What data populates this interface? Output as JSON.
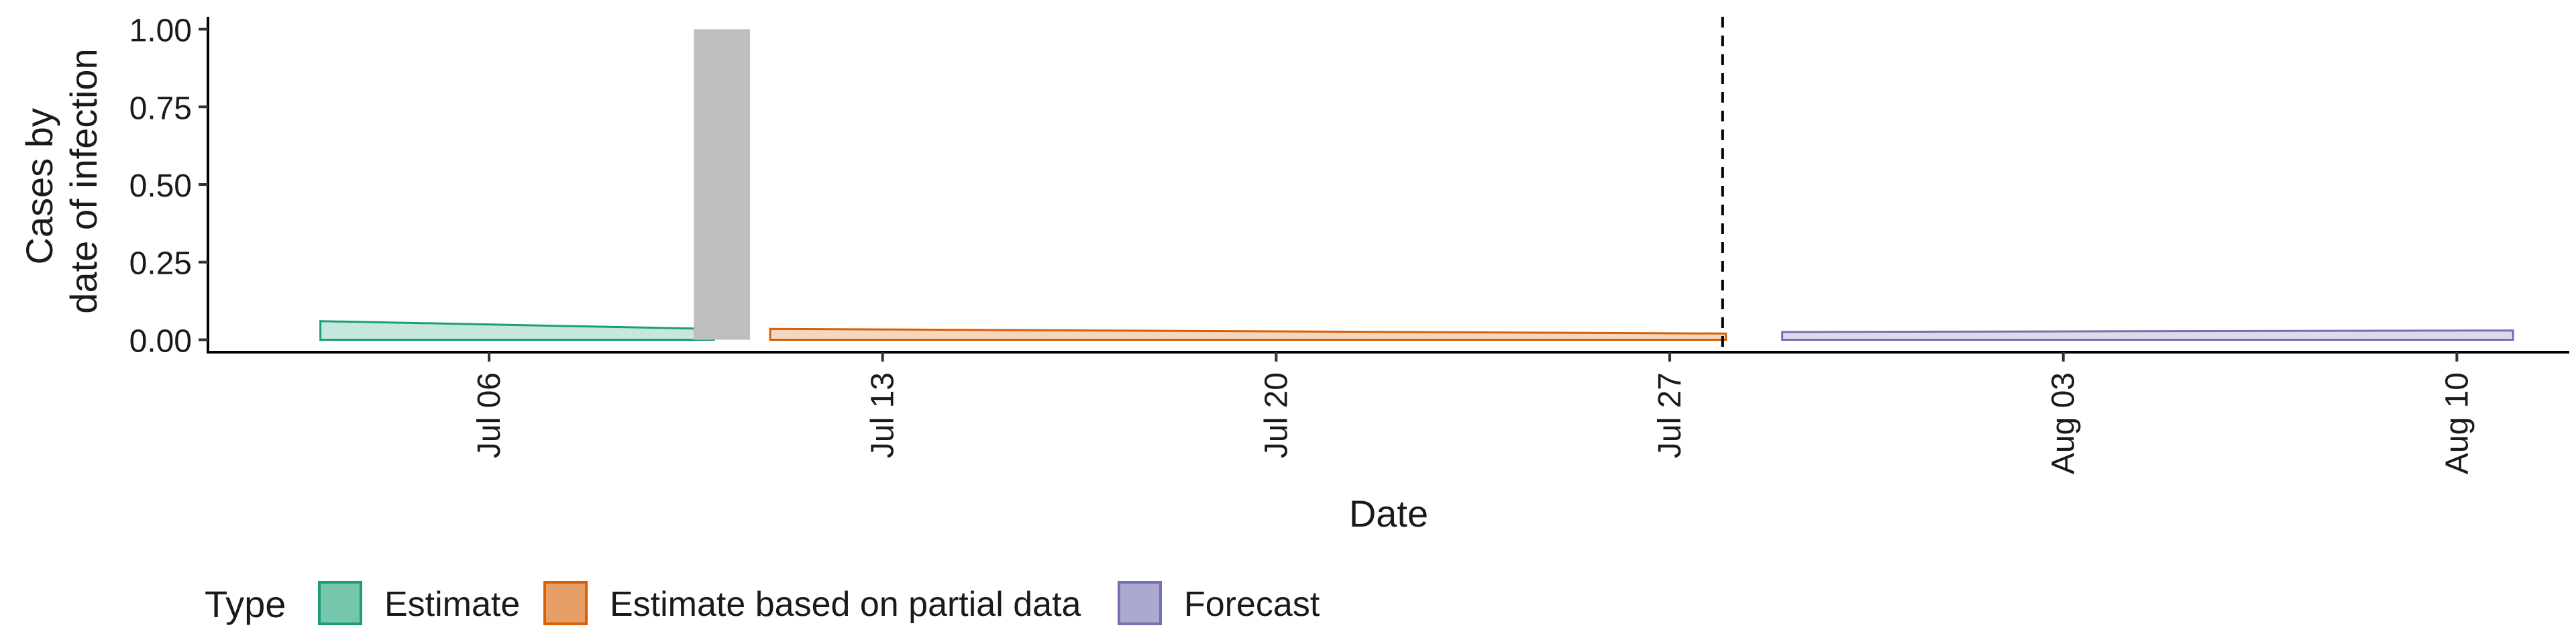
{
  "chart_data": {
    "type": "area",
    "xlabel": "Date",
    "ylabel": [
      "Cases by",
      "date of infection"
    ],
    "xlim": [
      "2020-07-01",
      "2020-08-12"
    ],
    "ylim": [
      -0.04,
      1.04
    ],
    "y_ticks": [
      0.0,
      0.25,
      0.5,
      0.75,
      1.0
    ],
    "y_tick_labels": [
      "0.00",
      "0.25",
      "0.50",
      "0.75",
      "1.00"
    ],
    "x_ticks": [
      "2020-07-06",
      "2020-07-13",
      "2020-07-20",
      "2020-07-27",
      "2020-08-03",
      "2020-08-10"
    ],
    "x_tick_labels": [
      "Jul 06",
      "Jul 13",
      "Jul 20",
      "Jul 27",
      "Aug 03",
      "Aug 10"
    ],
    "grid": false,
    "legend": {
      "title": "Type",
      "position": "bottom-left",
      "entries": [
        "Estimate",
        "Estimate based on partial data",
        "Forecast"
      ]
    },
    "series": [
      {
        "name": "Estimate",
        "fill": "#1b9e77",
        "x": [
          "2020-07-03",
          "2020-07-10"
        ],
        "lower": [
          0.0,
          0.0
        ],
        "upper": [
          0.06,
          0.035
        ]
      },
      {
        "name": "Estimate based on partial data",
        "fill": "#d95f02",
        "x": [
          "2020-07-11",
          "2020-07-28"
        ],
        "lower": [
          0.0,
          0.0
        ],
        "upper": [
          0.035,
          0.02
        ]
      },
      {
        "name": "Forecast",
        "fill": "#7570b3",
        "x": [
          "2020-07-29",
          "2020-08-11"
        ],
        "lower": [
          0.0,
          0.0
        ],
        "upper": [
          0.025,
          0.03
        ]
      }
    ],
    "shaded_bar": {
      "x_start": "2020-07-10",
      "x_end": "2020-07-11",
      "y": 1.0,
      "color": "#bebebe"
    },
    "vline": {
      "x": "2020-07-28",
      "style": "dashed"
    }
  }
}
